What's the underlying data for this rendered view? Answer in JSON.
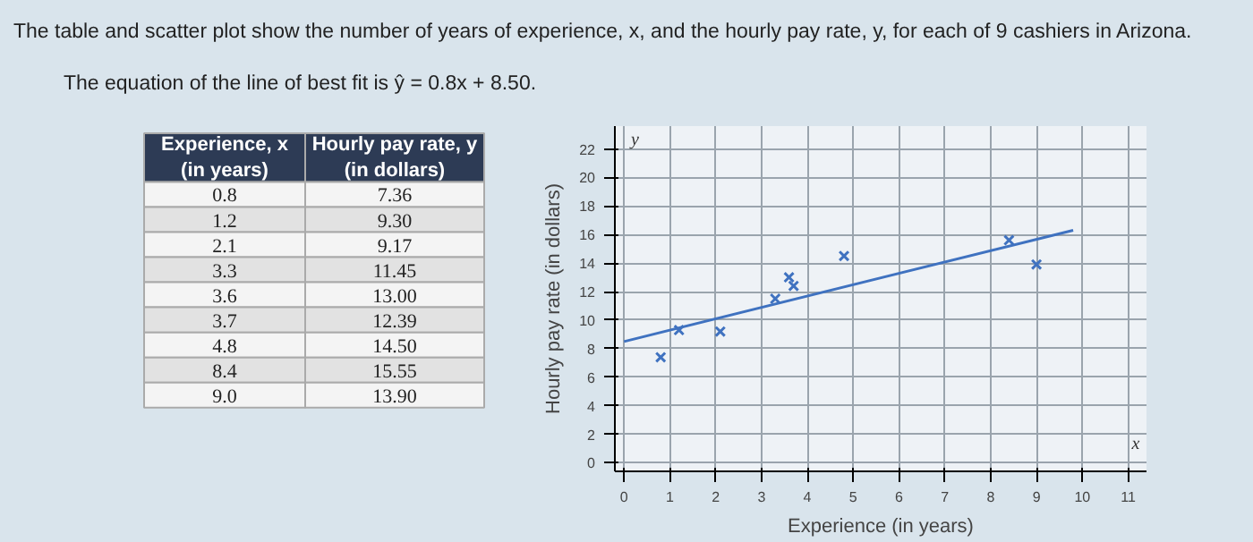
{
  "chart_data": [
    {
      "type": "other",
      "title": "The table and scatter plot show the number of years of experience, x, and the hourly pay rate, y, for each of 9 cashiers in Arizona.",
      "subtitle": "The equation of the line of best fit is ŷ = 0.8x + 8.50.",
      "annotations": [
        "Experience, x\n(in years)",
        "Hourly pay rate, y\n(in dollars)",
        "0.8",
        "7.36",
        "1.2",
        "9.30",
        "2.1",
        "9.17",
        "3.3",
        "11.45",
        "3.6",
        "13.00",
        "3.7",
        "12.39",
        "4.8",
        "14.50",
        "8.4",
        "15.55",
        "9.0",
        "13.90"
      ]
    },
    {
      "type": "scatter",
      "xlabel": "Experience (in years)",
      "ylabel": "Hourly pay rate (in dollars)",
      "annotations": [
        "x",
        "y"
      ],
      "series": [
        {
          "color": "#3f72c0",
          "x": [
            0.8,
            1.2,
            2.1,
            3.3,
            3.6,
            3.7,
            4.8,
            8.4,
            9.0
          ],
          "values": [
            7.4,
            9.3,
            9.2,
            11.5,
            13.0,
            12.4,
            14.5,
            15.6,
            13.9
          ],
          "marker": "cross"
        },
        {
          "type": "line",
          "color": "#3f72c0",
          "x": [
            0,
            9.8
          ],
          "values": [
            8.5,
            16.3
          ],
          "line_style": "solid"
        }
      ],
      "xlim": [
        -0.2,
        11.4
      ],
      "ylim": [
        -0.6,
        23.6
      ],
      "xticks": [
        0,
        1,
        2,
        3,
        4,
        5,
        6,
        7,
        8,
        9,
        10,
        11
      ],
      "yticks": [
        0,
        2,
        4,
        6,
        8,
        10,
        12,
        14,
        16,
        18,
        20,
        22
      ],
      "grid": true
    }
  ]
}
